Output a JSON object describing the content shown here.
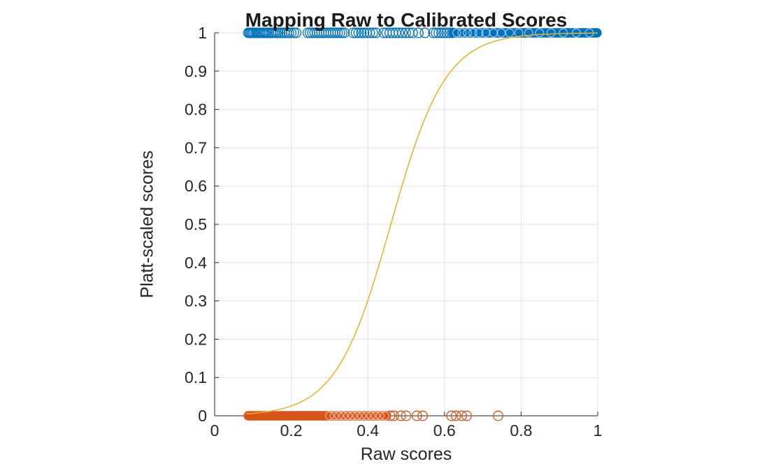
{
  "title": "Mapping Raw to Calibrated Scores",
  "axes": {
    "xlabel": "Raw scores",
    "ylabel": "Platt-scaled scores",
    "xlim": [
      0,
      1
    ],
    "ylim": [
      0,
      1
    ],
    "x_ticks": [
      0,
      0.2,
      0.4,
      0.6,
      0.8,
      1
    ],
    "x_tick_labels": [
      "0",
      "0.2",
      "0.4",
      "0.6",
      "0.8",
      "1"
    ],
    "y_ticks": [
      0,
      0.1,
      0.2,
      0.3,
      0.4,
      0.5,
      0.6,
      0.7,
      0.8,
      0.9,
      1
    ],
    "y_tick_labels": [
      "0",
      "0.1",
      "0.2",
      "0.3",
      "0.4",
      "0.5",
      "0.6",
      "0.7",
      "0.8",
      "0.9",
      "1"
    ],
    "grid": true,
    "tick_direction": "in"
  },
  "colors": {
    "positive_marker": "#0072BD",
    "negative_marker": "#D95319",
    "curve": "#EDB120",
    "axis": "#262626",
    "grid": "#E2E2E2",
    "title": "#1A1A1A",
    "background": "#FFFFFF"
  },
  "chart_data": {
    "type": "scatter",
    "title": "Mapping Raw to Calibrated Scores",
    "xlabel": "Raw scores",
    "ylabel": "Platt-scaled scores",
    "xlim": [
      0,
      1
    ],
    "ylim": [
      0,
      1
    ],
    "legend": "none",
    "series": [
      {
        "name": "positive-class-points",
        "kind": "scatter",
        "marker": "o",
        "color": "#0072BD",
        "y": 1,
        "dense_x_range": [
          0.623,
          0.998
        ],
        "x": [
          0.088,
          0.091,
          0.094,
          0.097,
          0.1,
          0.103,
          0.107,
          0.11,
          0.114,
          0.118,
          0.122,
          0.126,
          0.13,
          0.134,
          0.138,
          0.142,
          0.147,
          0.151,
          0.156,
          0.161,
          0.166,
          0.171,
          0.176,
          0.182,
          0.188,
          0.194,
          0.2,
          0.207,
          0.213,
          0.243,
          0.249,
          0.255,
          0.261,
          0.267,
          0.273,
          0.279,
          0.285,
          0.291,
          0.297,
          0.303,
          0.309,
          0.315,
          0.321,
          0.327,
          0.333,
          0.339,
          0.362,
          0.369,
          0.376,
          0.383,
          0.39,
          0.397,
          0.405,
          0.413,
          0.421,
          0.441,
          0.449,
          0.457,
          0.465,
          0.473,
          0.481,
          0.49,
          0.499,
          0.508,
          0.517,
          0.532,
          0.549,
          0.571,
          0.578,
          0.585,
          0.592,
          0.599,
          0.606,
          0.613,
          0.62
        ],
        "x_in_dense": [
          0.632,
          0.646,
          0.66,
          0.674,
          0.69,
          0.708,
          0.728,
          0.748,
          0.77,
          0.794,
          0.82,
          0.848,
          0.878,
          0.91,
          0.944,
          0.978
        ]
      },
      {
        "name": "negative-class-points",
        "kind": "scatter",
        "marker": "o",
        "color": "#D95319",
        "y": 0,
        "dense_x_range": [
          0.088,
          0.448
        ],
        "x": [
          0.458,
          0.468,
          0.486,
          0.5,
          0.528,
          0.543,
          0.618,
          0.63,
          0.645,
          0.658,
          0.74
        ],
        "x_in_dense": [
          0.3,
          0.312,
          0.324,
          0.336,
          0.348,
          0.36,
          0.372,
          0.384,
          0.396,
          0.408,
          0.42,
          0.432,
          0.444
        ]
      },
      {
        "name": "platt-sigmoid-curve",
        "kind": "line",
        "color": "#EDB120",
        "model": "logistic",
        "formula": "y = 1 / (1 + exp(-k*(x - x0)))",
        "x0": 0.46,
        "k": 14,
        "x_range": [
          0.082,
          1.0
        ]
      }
    ]
  }
}
